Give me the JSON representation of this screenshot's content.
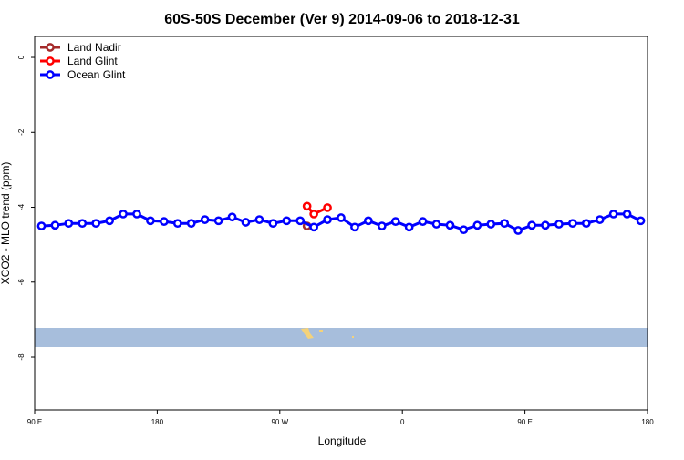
{
  "chart_data": {
    "type": "line",
    "title": "60S-50S December (Ver 9)   2014-09-06 to 2018-12-31",
    "x_label": "Longitude",
    "y_label": "XCO2 - MLO trend (ppm)",
    "xlim": [
      90,
      540
    ],
    "ylim": [
      -9.41,
      0.56
    ],
    "xticks": [
      {
        "value": 90,
        "label": "90 E"
      },
      {
        "value": 180,
        "label": "180"
      },
      {
        "value": 270,
        "label": "90 W"
      },
      {
        "value": 360,
        "label": "0"
      },
      {
        "value": 450,
        "label": "90 E"
      },
      {
        "value": 540,
        "label": "180"
      }
    ],
    "yticks": [
      0,
      -2,
      -4,
      -6,
      -8
    ],
    "legend": "top-left",
    "series": [
      {
        "name": "Land Nadir",
        "color": "#a52a2a",
        "x": [
          290
        ],
        "values": [
          -4.5
        ]
      },
      {
        "name": "Land Glint",
        "color": "#ff0000",
        "x": [
          290,
          295,
          305
        ],
        "values": [
          -3.97,
          -4.18,
          -4.01
        ]
      },
      {
        "name": "Ocean Glint",
        "color": "#0000ff",
        "x": [
          95,
          105,
          115,
          125,
          135,
          145,
          155,
          165,
          175,
          185,
          195,
          205,
          215,
          225,
          235,
          245,
          255,
          265,
          275,
          285,
          295,
          305,
          315,
          325,
          335,
          345,
          355,
          365,
          375,
          385,
          395,
          405,
          415,
          425,
          435,
          445,
          455,
          465,
          475,
          485,
          495,
          505,
          515,
          525,
          535
        ],
        "values": [
          -4.5,
          -4.48,
          -4.43,
          -4.43,
          -4.43,
          -4.36,
          -4.18,
          -4.18,
          -4.36,
          -4.38,
          -4.43,
          -4.43,
          -4.33,
          -4.36,
          -4.26,
          -4.4,
          -4.33,
          -4.43,
          -4.36,
          -4.36,
          -4.53,
          -4.33,
          -4.28,
          -4.53,
          -4.36,
          -4.5,
          -4.38,
          -4.53,
          -4.38,
          -4.45,
          -4.48,
          -4.6,
          -4.48,
          -4.45,
          -4.43,
          -4.62,
          -4.48,
          -4.48,
          -4.45,
          -4.43,
          -4.43,
          -4.33,
          -4.18,
          -4.18,
          -4.36
        ]
      }
    ]
  }
}
